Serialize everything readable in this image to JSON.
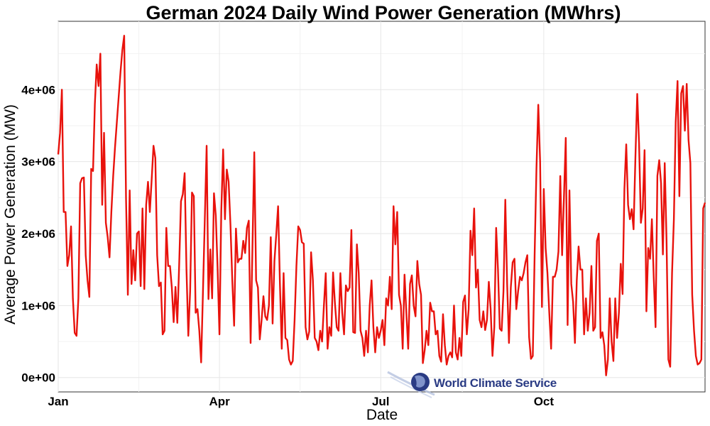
{
  "chart_data": {
    "type": "line",
    "title": "German 2024 Daily Wind Power Generation (MWhrs)",
    "xlabel": "Date",
    "ylabel": "Average Power Generation (MW)",
    "x_ticks": [
      {
        "label": "Jan",
        "day": 0
      },
      {
        "label": "Apr",
        "day": 91
      },
      {
        "label": "Jul",
        "day": 182
      },
      {
        "label": "Oct",
        "day": 274
      }
    ],
    "y_ticks": [
      {
        "label": "0e+00",
        "value": 0
      },
      {
        "label": "1e+06",
        "value": 1000000
      },
      {
        "label": "2e+06",
        "value": 2000000
      },
      {
        "label": "3e+06",
        "value": 3000000
      },
      {
        "label": "4e+06",
        "value": 4000000
      }
    ],
    "xlim_days": [
      0,
      365
    ],
    "ylim": [
      -200000,
      4950000
    ],
    "grid": true,
    "line_color": "#e8120c",
    "series": [
      {
        "x_start": "2024-01-01",
        "values": [
          3100000,
          3400000,
          4000000,
          2300000,
          2300000,
          1550000,
          1700000,
          2100000,
          1100000,
          620000,
          580000,
          1100000,
          2700000,
          2770000,
          2780000,
          1700000,
          1350000,
          1120000,
          2900000,
          2870000,
          3800000,
          4350000,
          4050000,
          4500000,
          2400000,
          3400000,
          2150000,
          1950000,
          1670000,
          2300000,
          2800000,
          3200000,
          3550000,
          3900000,
          4250000,
          4550000,
          4750000,
          2500000,
          1150000,
          2600000,
          1300000,
          1770000,
          1350000,
          2000000,
          2030000,
          1270000,
          2350000,
          1230000,
          2400000,
          2720000,
          2300000,
          2750000,
          3220000,
          3050000,
          1700000,
          1270000,
          1320000,
          600000,
          650000,
          2080000,
          1550000,
          1550000,
          1250000,
          770000,
          1260000,
          760000,
          1560000,
          2450000,
          2550000,
          2840000,
          1500000,
          580000,
          1200000,
          2570000,
          2520000,
          900000,
          950000,
          650000,
          210000,
          1200000,
          2200000,
          3220000,
          1090000,
          1780000,
          1100000,
          2560000,
          2250000,
          1500000,
          600000,
          2320000,
          3170000,
          2200000,
          2890000,
          2720000,
          2120000,
          1350000,
          720000,
          2070000,
          1600000,
          1650000,
          1650000,
          1900000,
          1730000,
          2080000,
          2180000,
          480000,
          1800000,
          3130000,
          1350000,
          1250000,
          530000,
          800000,
          1130000,
          850000,
          800000,
          1000000,
          1950000,
          750000,
          1620000,
          1990000,
          2380000,
          1300000,
          400000,
          1450000,
          550000,
          520000,
          250000,
          180000,
          230000,
          800000,
          1550000,
          2100000,
          2050000,
          1880000,
          1860000,
          700000,
          530000,
          640000,
          1740000,
          1350000,
          550000,
          500000,
          380000,
          650000,
          500000,
          1000000,
          1450000,
          400000,
          700000,
          580000,
          1460000,
          1040000,
          700000,
          650000,
          1450000,
          900000,
          600000,
          1280000,
          1200000,
          1250000,
          2050000,
          630000,
          620000,
          1850000,
          1450000,
          650000,
          550000,
          300000,
          650000,
          350000,
          1000000,
          1350000,
          700000,
          350000,
          700000,
          550000,
          650000,
          800000,
          450000,
          1100000,
          1000000,
          1400000,
          950000,
          2380000,
          1850000,
          2300000,
          1150000,
          1000000,
          400000,
          1430000,
          900000,
          400000,
          1300000,
          1420000,
          1000000,
          850000,
          1620000,
          1300000,
          1150000,
          200000,
          380000,
          650000,
          450000,
          1040000,
          920000,
          920000,
          600000,
          650000,
          300000,
          220000,
          880000,
          450000,
          180000,
          300000,
          350000,
          280000,
          1000000,
          350000,
          250000,
          550000,
          300000,
          1050000,
          1140000,
          600000,
          950000,
          2040000,
          1700000,
          2350000,
          1250000,
          1500000,
          800000,
          700000,
          920000,
          660000,
          800000,
          1330000,
          950000,
          300000,
          700000,
          2080000,
          1500000,
          680000,
          650000,
          1200000,
          2470000,
          1300000,
          480000,
          1250000,
          1600000,
          1650000,
          950000,
          1200000,
          1400000,
          1350000,
          1450000,
          1600000,
          1700000,
          560000,
          260000,
          300000,
          1700000,
          2900000,
          3790000,
          3000000,
          980000,
          2620000,
          1800000,
          1450000,
          900000,
          400000,
          1400000,
          1400000,
          1500000,
          1750000,
          2800000,
          1700000,
          2500000,
          3330000,
          730000,
          2600000,
          1300000,
          1050000,
          480000,
          1350000,
          1820000,
          1500000,
          1500000,
          600000,
          1100000,
          650000,
          900000,
          1550000,
          650000,
          700000,
          1900000,
          2000000,
          550000,
          630000,
          450000,
          30000,
          250000,
          1100000,
          500000,
          230000,
          1100000,
          550000,
          900000,
          1580000,
          1160000,
          2620000,
          3240000,
          2400000,
          2200000,
          2340000,
          2060000,
          3050000,
          3940000,
          3250000,
          2150000,
          2350000,
          3160000,
          920000,
          1800000,
          1650000,
          2200000,
          1400000,
          700000,
          2800000,
          3020000,
          2700000,
          1710000,
          2980000,
          1900000,
          250000,
          150000,
          1450000,
          2200000,
          3550000,
          4120000,
          2520000,
          3950000,
          4050000,
          3430000,
          4080000,
          3300000,
          2980000,
          1150000,
          650000,
          300000,
          180000,
          200000,
          250000,
          2350000,
          2430000
        ]
      }
    ],
    "watermark_text": "World Climate Service"
  }
}
